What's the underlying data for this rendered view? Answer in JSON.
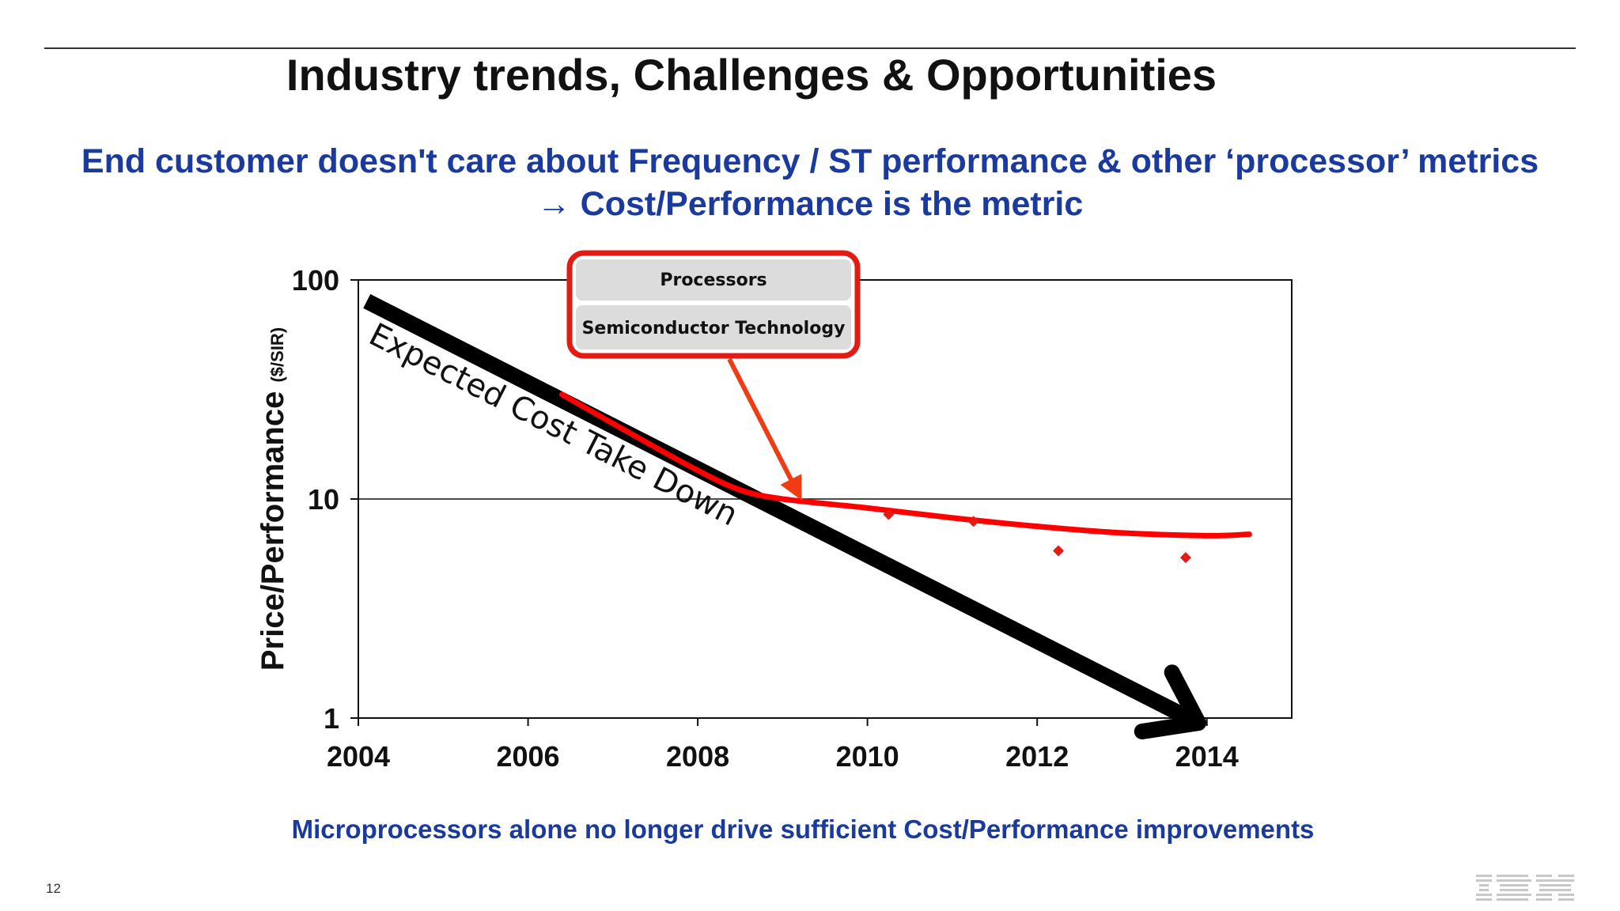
{
  "slide": {
    "title": "Industry trends, Challenges & Opportunities",
    "subtitle_line1": "End customer doesn't care about Frequency / ST performance & other ‘processor’ metrics",
    "subtitle_line2": "→ Cost/Performance is the metric",
    "footer": "Microprocessors alone no longer drive sufficient Cost/Performance improvements",
    "page_number": "12",
    "logo": "IBM"
  },
  "chart_data": {
    "type": "line",
    "ylabel": "Price/Performance",
    "ylabel_unit": "($/SIR)",
    "xlabel": "",
    "x_ticks": [
      2004,
      2006,
      2008,
      2010,
      2012,
      2014
    ],
    "xlim": [
      2004,
      2015
    ],
    "y_scale": "log",
    "ylim": [
      1,
      100
    ],
    "y_ticks": [
      1,
      10,
      100
    ],
    "grid": "horizontal at 10",
    "legend": {
      "placement": "top-center",
      "entries": [
        "Processors",
        "Semiconductor Technology"
      ],
      "border_color": "#e41b13"
    },
    "series": [
      {
        "name": "Expected Cost Take Down",
        "kind": "arrow",
        "color": "#000000",
        "points": [
          {
            "x": 2004.1,
            "y": 80
          },
          {
            "x": 2013.9,
            "y": 0.95
          }
        ]
      },
      {
        "name": "",
        "kind": "curve",
        "color": "#ff0000",
        "points": [
          {
            "x": 2006.4,
            "y": 30
          },
          {
            "x": 2007.2,
            "y": 20
          },
          {
            "x": 2008.0,
            "y": 13.5
          },
          {
            "x": 2008.5,
            "y": 11
          },
          {
            "x": 2009.0,
            "y": 10
          },
          {
            "x": 2010.0,
            "y": 9.1
          },
          {
            "x": 2011.0,
            "y": 8.2
          },
          {
            "x": 2012.0,
            "y": 7.5
          },
          {
            "x": 2013.0,
            "y": 7.0
          },
          {
            "x": 2014.0,
            "y": 6.8
          },
          {
            "x": 2014.5,
            "y": 6.9
          }
        ]
      },
      {
        "name": "",
        "kind": "markers",
        "color": "#e41b13",
        "points": [
          {
            "x": 2010.25,
            "y": 8.5
          },
          {
            "x": 2011.25,
            "y": 7.9
          },
          {
            "x": 2012.25,
            "y": 5.8
          },
          {
            "x": 2013.75,
            "y": 5.4
          }
        ]
      }
    ],
    "annotations": [
      {
        "text": "Expected Cost Take Down",
        "anchor_x": 2004.1,
        "anchor_y": 40
      }
    ],
    "callout_arrow": {
      "color": "#f03c14",
      "target_x": 2009.2,
      "target_y": 10.3
    }
  }
}
